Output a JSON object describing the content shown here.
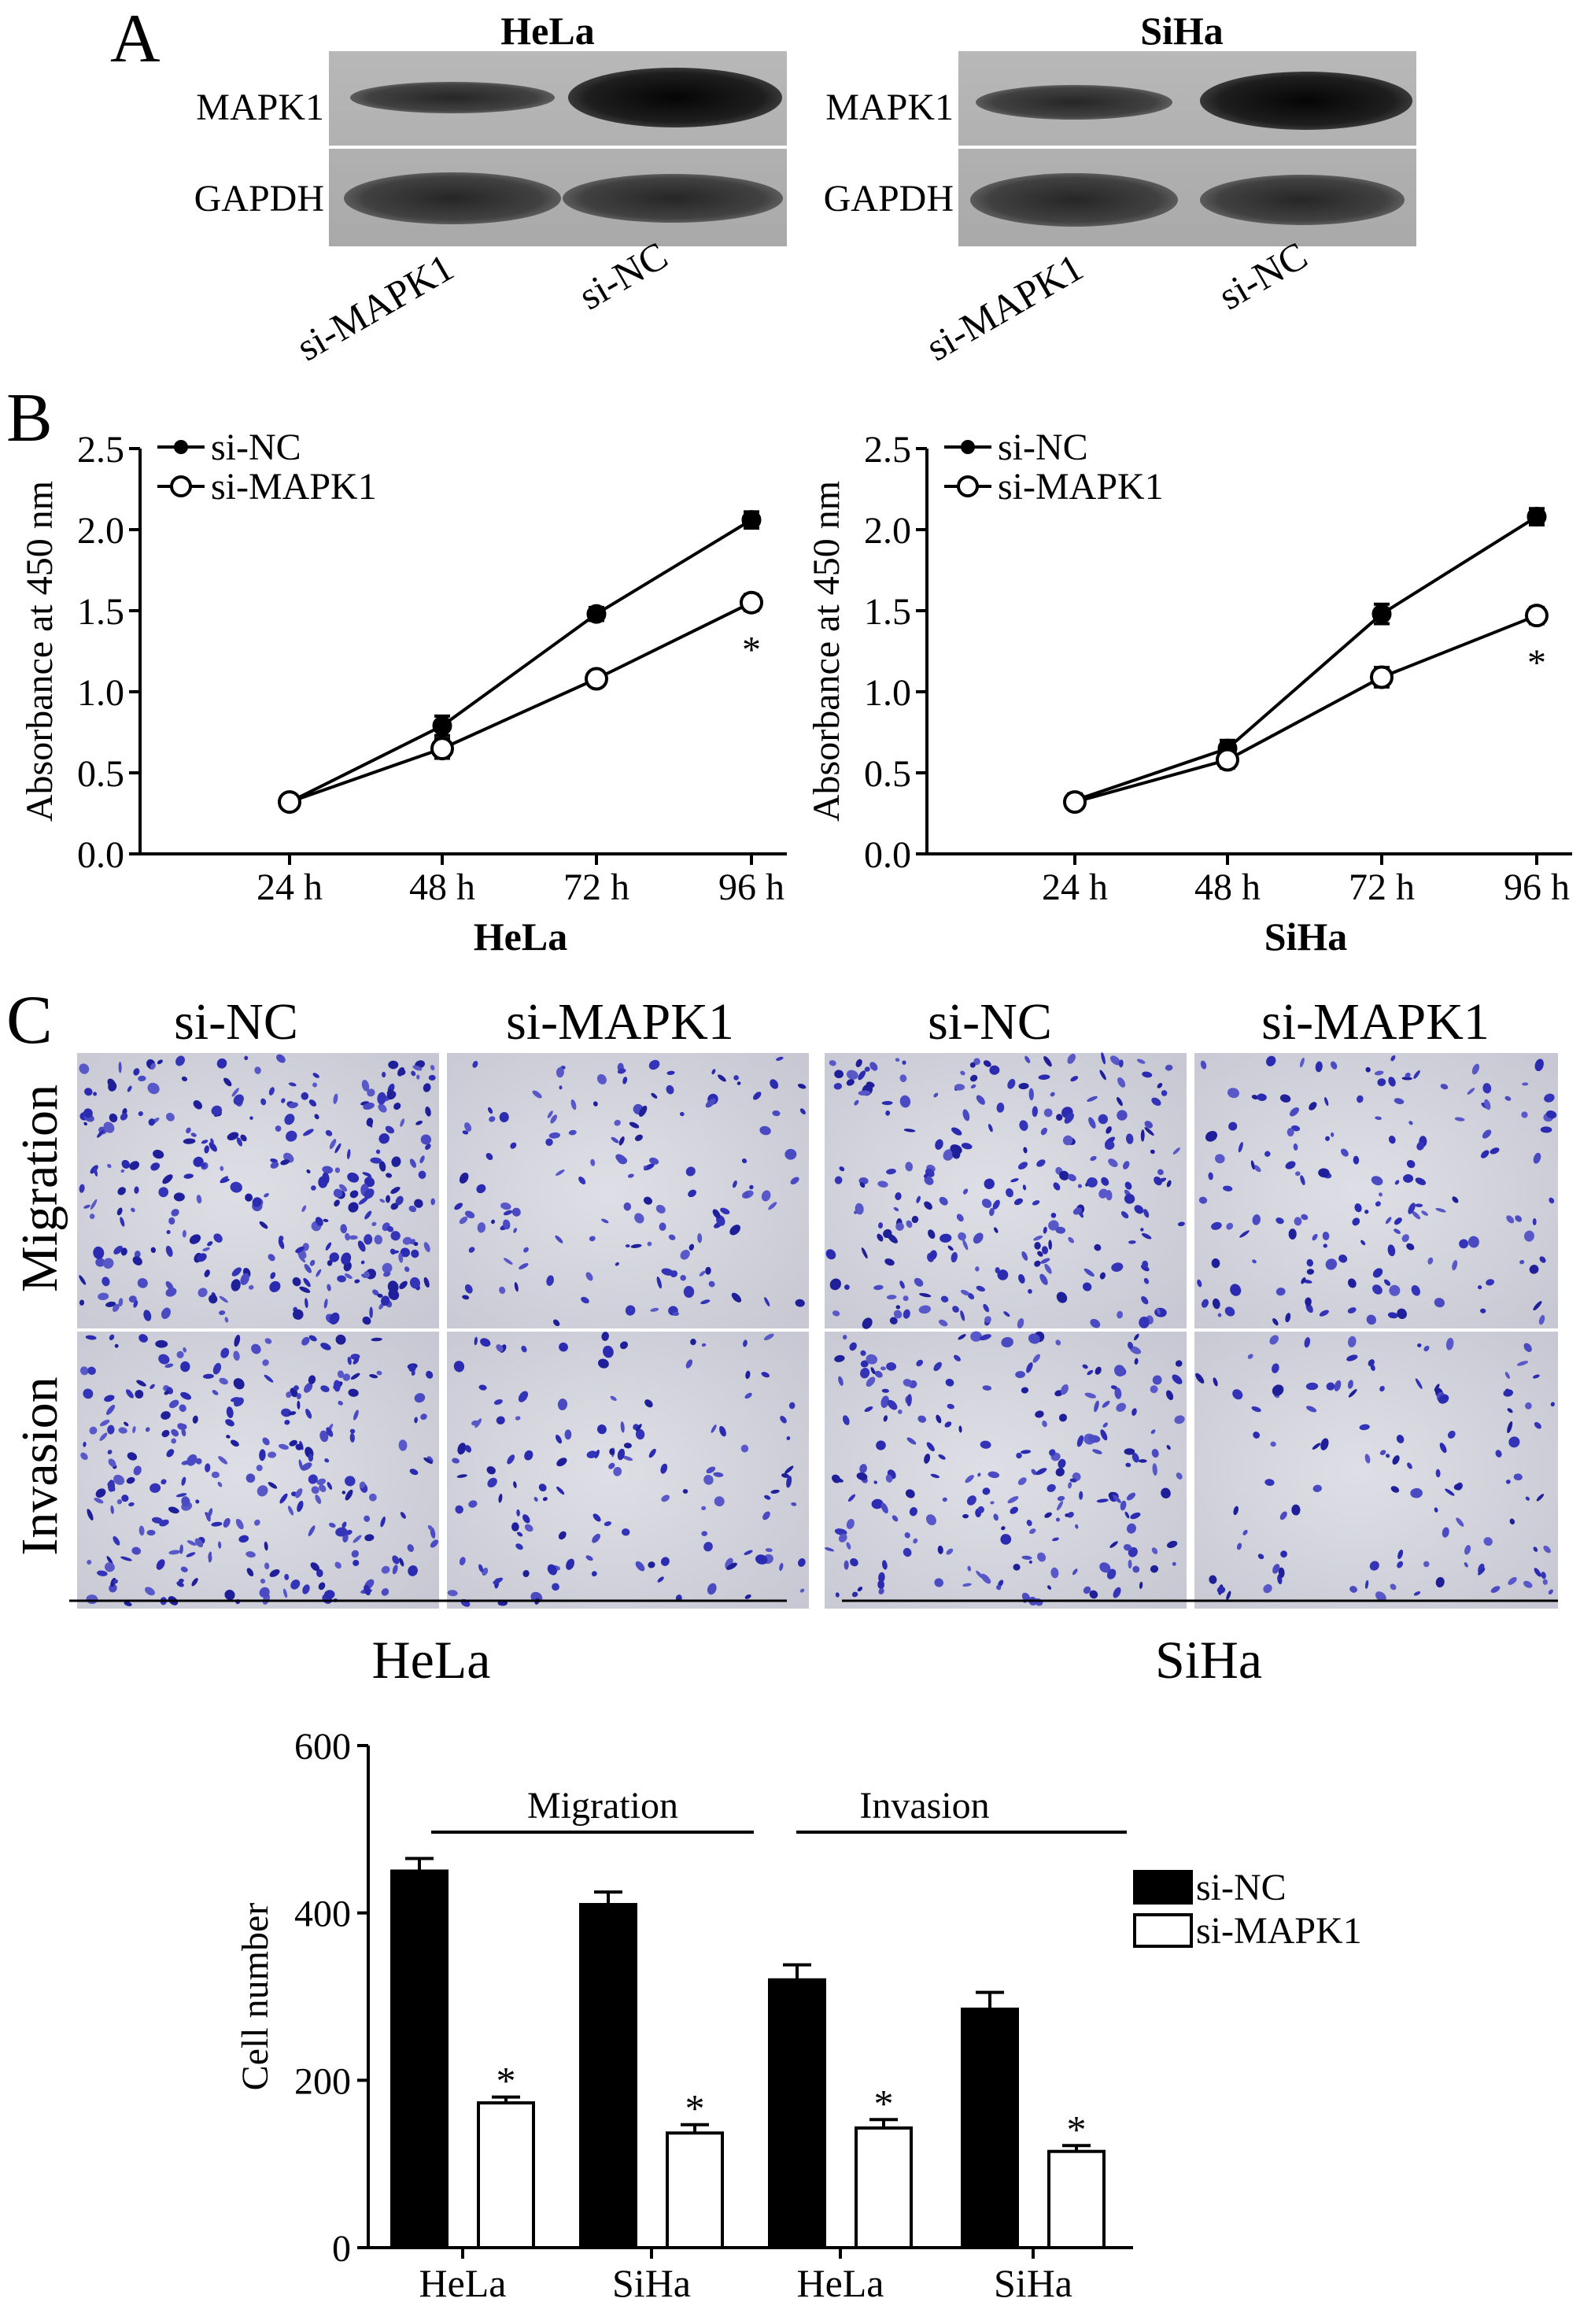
{
  "panelA": {
    "letter": "A",
    "blots": [
      {
        "cell_line": "HeLa",
        "rows": [
          "MAPK1",
          "GAPDH"
        ],
        "lanes": [
          "si-MAPK1",
          "si-NC"
        ]
      },
      {
        "cell_line": "SiHa",
        "rows": [
          "MAPK1",
          "GAPDH"
        ],
        "lanes": [
          "si-MAPK1",
          "si-NC"
        ]
      }
    ]
  },
  "panelB": {
    "letter": "B",
    "ylabel": "Absorbance at 450 nm",
    "legend": [
      "si-NC",
      "si-MAPK1"
    ],
    "significance": "*"
  },
  "panelC": {
    "letter": "C",
    "col_headers": [
      "si-NC",
      "si-MAPK1",
      "si-NC",
      "si-MAPK1"
    ],
    "row_headers": [
      "Migration",
      "Invasion"
    ],
    "group_labels": [
      "HeLa",
      "SiHa"
    ]
  },
  "chart_data": [
    {
      "type": "line",
      "title": "",
      "xlabel": "HeLa",
      "ylabel": "Absorbance at 450 nm",
      "categories": [
        "24 h",
        "48 h",
        "72 h",
        "96 h"
      ],
      "yticks": [
        "0.0",
        "0.5",
        "1.0",
        "1.5",
        "2.0",
        "2.5"
      ],
      "ylim": [
        0,
        2.5
      ],
      "legend_position": "top-left",
      "series": [
        {
          "name": "si-NC",
          "marker": "filled",
          "values": [
            0.32,
            0.79,
            1.48,
            2.06
          ],
          "errors": [
            0.04,
            0.06,
            0.04,
            0.05
          ]
        },
        {
          "name": "si-MAPK1",
          "marker": "open",
          "values": [
            0.32,
            0.65,
            1.08,
            1.55
          ],
          "errors": [
            0.04,
            0.06,
            0.04,
            0.05
          ]
        }
      ],
      "annotations": [
        {
          "x": "96 h",
          "text": "*"
        }
      ]
    },
    {
      "type": "line",
      "title": "",
      "xlabel": "SiHa",
      "ylabel": "Absorbance at 450 nm",
      "categories": [
        "24 h",
        "48 h",
        "72 h",
        "96 h"
      ],
      "yticks": [
        "0.0",
        "0.5",
        "1.0",
        "1.5",
        "2.0",
        "2.5"
      ],
      "ylim": [
        0,
        2.5
      ],
      "legend_position": "top-left",
      "series": [
        {
          "name": "si-NC",
          "marker": "filled",
          "values": [
            0.33,
            0.65,
            1.48,
            2.08
          ],
          "errors": [
            0.04,
            0.05,
            0.06,
            0.05
          ]
        },
        {
          "name": "si-MAPK1",
          "marker": "open",
          "values": [
            0.32,
            0.58,
            1.09,
            1.47
          ],
          "errors": [
            0.04,
            0.05,
            0.06,
            0.05
          ]
        }
      ],
      "annotations": [
        {
          "x": "96 h",
          "text": "*"
        }
      ]
    },
    {
      "type": "bar",
      "title": "",
      "xlabel": "",
      "ylabel": "Cell number",
      "categories": [
        "HeLa",
        "SiHa",
        "HeLa",
        "SiHa"
      ],
      "groups": [
        {
          "label": "Migration",
          "categories": [
            0,
            1
          ]
        },
        {
          "label": "Invasion",
          "categories": [
            2,
            3
          ]
        }
      ],
      "yticks": [
        "0",
        "200",
        "400",
        "600"
      ],
      "ylim": [
        0,
        600
      ],
      "legend_position": "right",
      "series": [
        {
          "name": "si-NC",
          "color": "#000000",
          "values": [
            450,
            410,
            320,
            285
          ],
          "errors": [
            15,
            15,
            18,
            20
          ]
        },
        {
          "name": "si-MAPK1",
          "color": "#ffffff",
          "values": [
            173,
            137,
            143,
            115
          ],
          "errors": [
            7,
            10,
            10,
            7
          ]
        }
      ],
      "annotations": [
        {
          "series": "si-MAPK1",
          "text": "*"
        }
      ]
    }
  ]
}
